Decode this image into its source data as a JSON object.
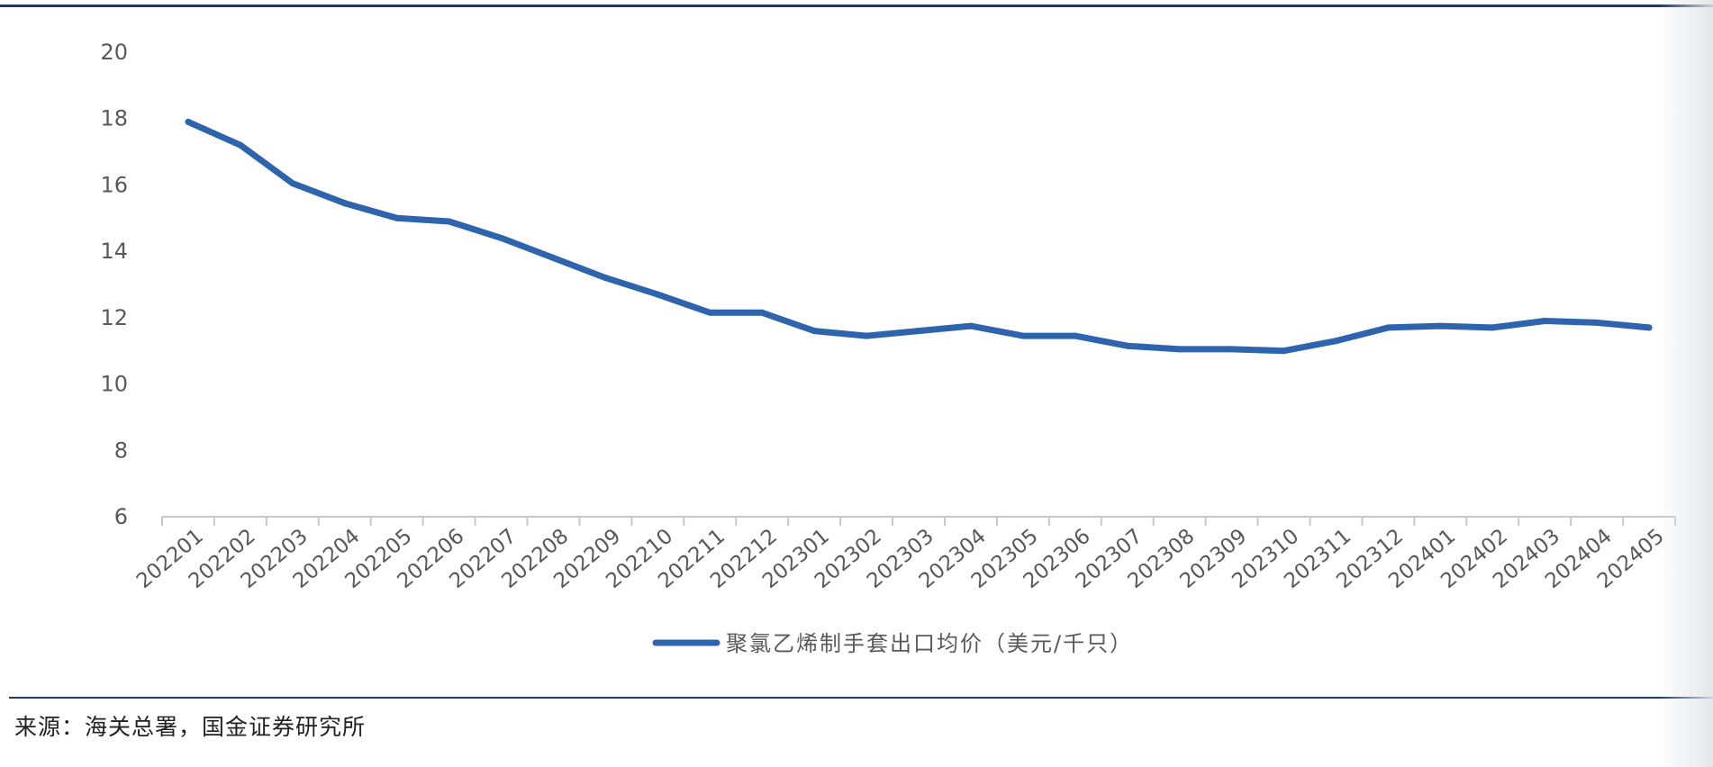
{
  "chart_data": {
    "type": "line",
    "categories": [
      "202201",
      "202202",
      "202203",
      "202204",
      "202205",
      "202206",
      "202207",
      "202208",
      "202209",
      "202210",
      "202211",
      "202212",
      "202301",
      "202302",
      "202303",
      "202304",
      "202305",
      "202306",
      "202307",
      "202308",
      "202309",
      "202310",
      "202311",
      "202312",
      "202401",
      "202402",
      "202403",
      "202404",
      "202405"
    ],
    "series": [
      {
        "name": "聚氯乙烯制手套出口均价（美元/千只）",
        "values": [
          17.9,
          17.2,
          16.05,
          15.45,
          15.0,
          14.9,
          14.4,
          13.8,
          13.2,
          12.7,
          12.15,
          12.15,
          11.6,
          11.45,
          11.6,
          11.75,
          11.45,
          11.45,
          11.15,
          11.05,
          11.05,
          11.0,
          11.3,
          11.7,
          11.75,
          11.7,
          11.9,
          11.85,
          11.7
        ]
      }
    ],
    "yticks": [
      6,
      8,
      10,
      12,
      14,
      16,
      18,
      20
    ],
    "ylim": [
      6,
      20
    ],
    "xlabel": "",
    "ylabel": "",
    "legend_position": "bottom",
    "grid": false,
    "colors": {
      "line": "#2e64ae",
      "axis": "#c8c8c8",
      "text": "#595959",
      "rule": "#1f3a5c"
    }
  },
  "source_note": "来源：海关总署，国金证券研究所"
}
